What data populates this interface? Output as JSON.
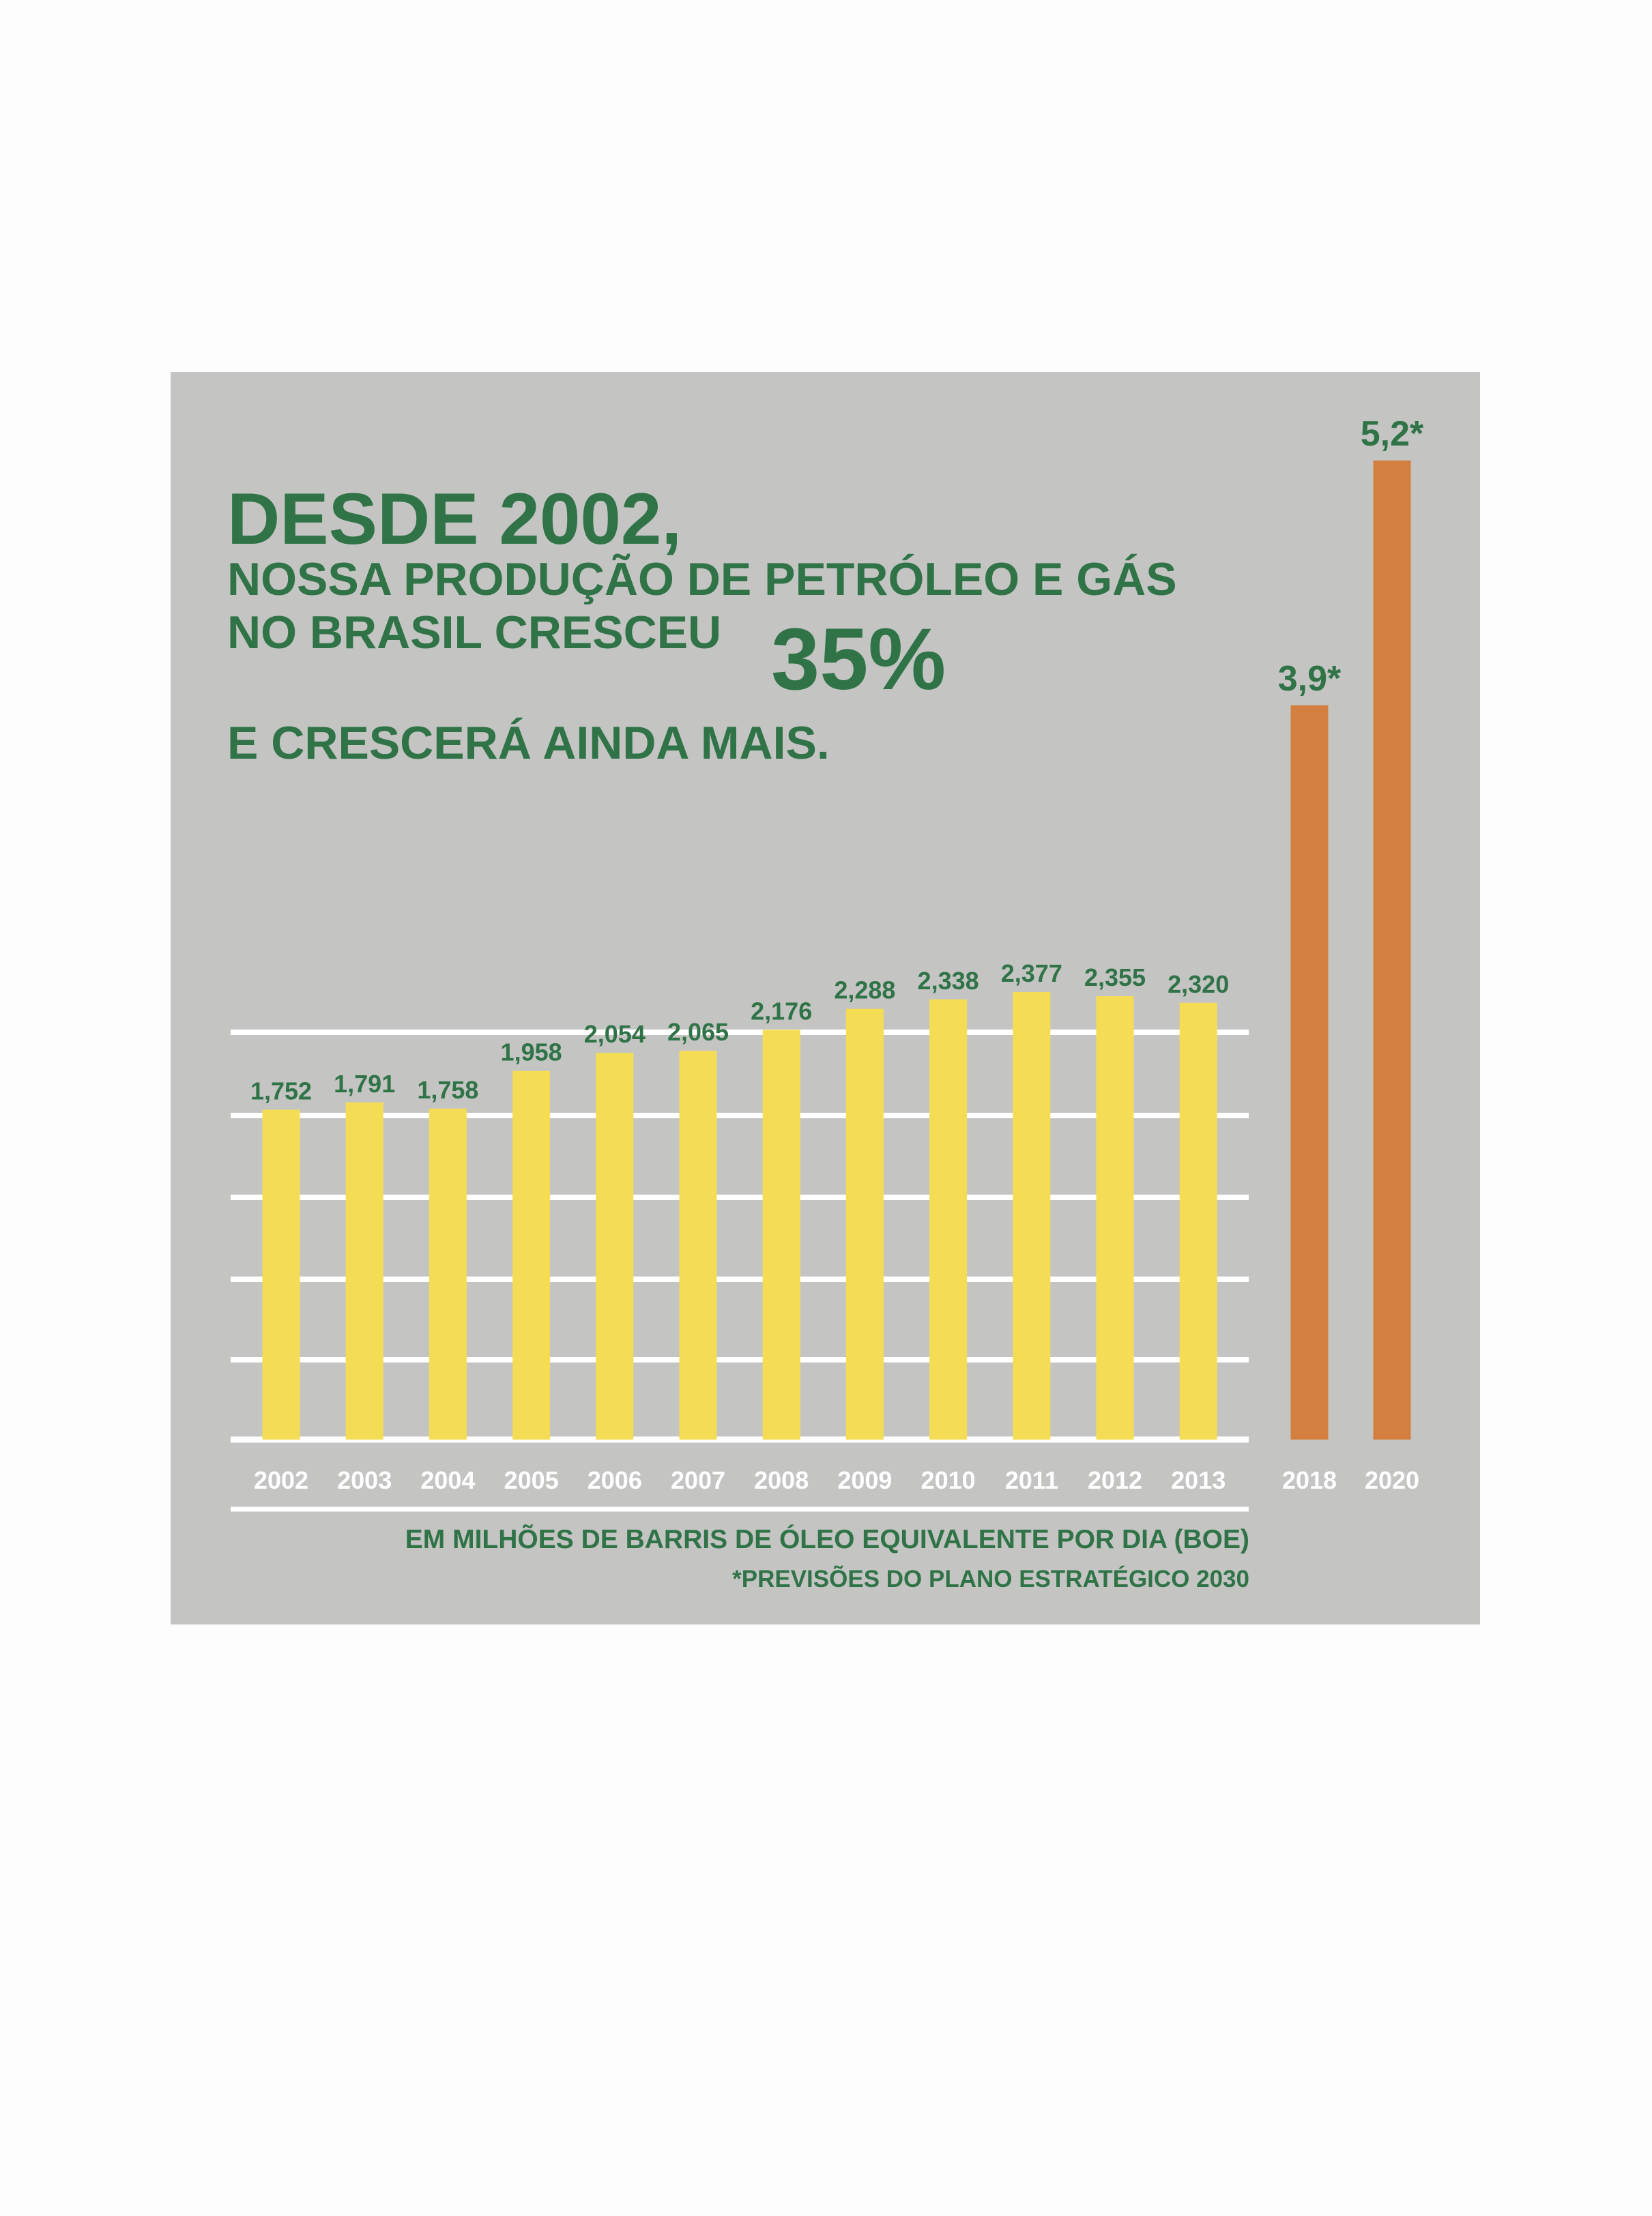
{
  "headline": {
    "line1": "DESDE 2002,",
    "line2": "NOSSA PRODUÇÃO DE PETRÓLEO E GÁS",
    "line3": "NO BRASIL CRESCEU",
    "percent": "35%",
    "line4": "E CRESCERÁ AINDA MAIS."
  },
  "footer": {
    "unit_note": "EM MILHÕES DE BARRIS DE ÓLEO EQUIVALENTE POR DIA (BOE)",
    "forecast_note": "*PREVISÕES DO PLANO ESTRATÉGICO 2030"
  },
  "colors": {
    "panel_bg": "#c4c5c3",
    "text_green": "#2f7347",
    "actual_bar": "#f4dd54",
    "forecast_bar": "#d27f40",
    "gridline": "#ffffff",
    "axis_label": "#ffffff"
  },
  "chart_data": {
    "type": "bar",
    "categories": [
      "2002",
      "2003",
      "2004",
      "2005",
      "2006",
      "2007",
      "2008",
      "2009",
      "2010",
      "2011",
      "2012",
      "2013",
      "2018",
      "2020"
    ],
    "series": [
      {
        "values": [
          1.752,
          1.791,
          1.758,
          1.958,
          2.054,
          2.065,
          2.176,
          2.288,
          2.338,
          2.377,
          2.355,
          2.32,
          null,
          null
        ],
        "labels": [
          "1,752",
          "1,791",
          "1,758",
          "1,958",
          "2,054",
          "2,065",
          "2,176",
          "2,288",
          "2,338",
          "2,377",
          "2,355",
          "2,320",
          "",
          ""
        ],
        "color": "#f4dd54"
      },
      {
        "values": [
          null,
          null,
          null,
          null,
          null,
          null,
          null,
          null,
          null,
          null,
          null,
          null,
          3.9,
          5.2
        ],
        "labels": [
          "",
          "",
          "",
          "",
          "",
          "",
          "",
          "",
          "",
          "",
          "",
          "",
          "3,9*",
          "5,2*"
        ],
        "color": "#d27f40"
      }
    ],
    "ylim": [
      0,
      5.2
    ],
    "grid": true,
    "title": "",
    "xlabel": "",
    "ylabel": ""
  }
}
